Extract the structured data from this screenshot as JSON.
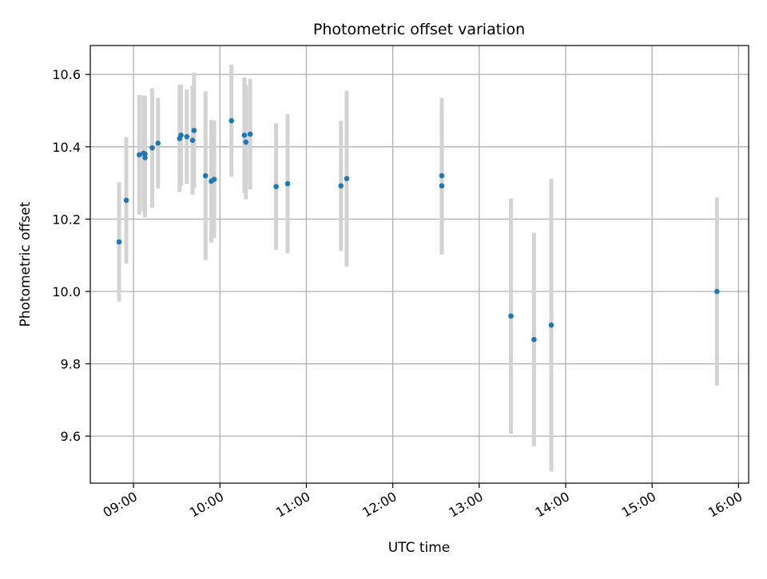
{
  "chart_data": {
    "type": "scatter",
    "title": "Photometric offset variation",
    "xlabel": "UTC time",
    "ylabel": "Photometric offset",
    "x_tick_labels": [
      "09:00",
      "10:00",
      "11:00",
      "12:00",
      "13:00",
      "14:00",
      "15:00",
      "16:00"
    ],
    "y_tick_labels": [
      "9.6",
      "9.8",
      "10.0",
      "10.2",
      "10.4",
      "10.6"
    ],
    "x_ticks": [
      "09:00",
      "10:00",
      "11:00",
      "12:00",
      "13:00",
      "14:00",
      "15:00",
      "16:00"
    ],
    "y_ticks": [
      9.6,
      9.8,
      10.0,
      10.2,
      10.4,
      10.6
    ],
    "xlim": [
      "08:30",
      "16:07"
    ],
    "ylim": [
      9.47,
      10.68
    ],
    "grid": true,
    "series": [
      {
        "marker_color": "#1f77b4",
        "errorbar_color": "#d3d3d3",
        "points": [
          {
            "x": "08:50",
            "y": 10.137,
            "err": 0.165
          },
          {
            "x": "08:55",
            "y": 10.252,
            "err": 0.175
          },
          {
            "x": "09:04",
            "y": 10.378,
            "err": 0.165
          },
          {
            "x": "09:07",
            "y": 10.382,
            "err": 0.16
          },
          {
            "x": "09:08",
            "y": 10.38,
            "err": 0.16
          },
          {
            "x": "09:08",
            "y": 10.37,
            "err": 0.165
          },
          {
            "x": "09:13",
            "y": 10.397,
            "err": 0.165
          },
          {
            "x": "09:17",
            "y": 10.41,
            "err": 0.125
          },
          {
            "x": "09:32",
            "y": 10.423,
            "err": 0.148
          },
          {
            "x": "09:33",
            "y": 10.432,
            "err": 0.14
          },
          {
            "x": "09:37",
            "y": 10.428,
            "err": 0.13
          },
          {
            "x": "09:41",
            "y": 10.418,
            "err": 0.15
          },
          {
            "x": "09:42",
            "y": 10.445,
            "err": 0.16
          },
          {
            "x": "09:50",
            "y": 10.32,
            "err": 0.233
          },
          {
            "x": "09:54",
            "y": 10.305,
            "err": 0.17
          },
          {
            "x": "09:56",
            "y": 10.31,
            "err": 0.163
          },
          {
            "x": "10:08",
            "y": 10.472,
            "err": 0.155
          },
          {
            "x": "10:17",
            "y": 10.432,
            "err": 0.16
          },
          {
            "x": "10:18",
            "y": 10.413,
            "err": 0.158
          },
          {
            "x": "10:21",
            "y": 10.435,
            "err": 0.153
          },
          {
            "x": "10:39",
            "y": 10.29,
            "err": 0.175
          },
          {
            "x": "10:47",
            "y": 10.298,
            "err": 0.192
          },
          {
            "x": "11:24",
            "y": 10.292,
            "err": 0.18
          },
          {
            "x": "11:28",
            "y": 10.312,
            "err": 0.243
          },
          {
            "x": "12:34",
            "y": 10.32,
            "err": 0.215
          },
          {
            "x": "12:34",
            "y": 10.292,
            "err": 0.19
          },
          {
            "x": "13:22",
            "y": 9.932,
            "err": 0.325
          },
          {
            "x": "13:38",
            "y": 9.867,
            "err": 0.295
          },
          {
            "x": "13:50",
            "y": 9.907,
            "err": 0.405
          },
          {
            "x": "15:45",
            "y": 10.0,
            "err": 0.26
          }
        ]
      }
    ]
  }
}
